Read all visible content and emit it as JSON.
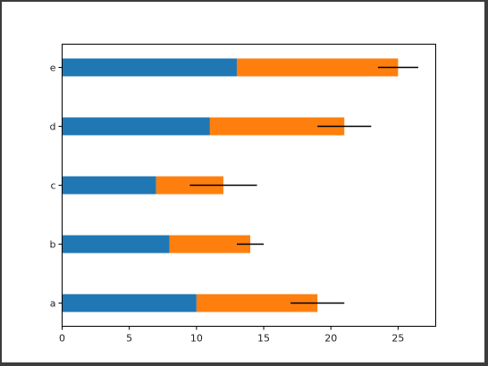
{
  "chart_data": {
    "type": "bar",
    "orientation": "horizontal",
    "stacked": true,
    "categories": [
      "a",
      "b",
      "c",
      "d",
      "e"
    ],
    "series": [
      {
        "values": [
          10,
          8,
          7,
          11,
          13
        ],
        "color": "#1f77b4"
      },
      {
        "values": [
          9,
          6,
          5,
          10,
          12
        ],
        "color": "#ff7f0e"
      }
    ],
    "error_bars": {
      "series_index": 1,
      "errors": [
        2,
        1,
        2.5,
        2,
        1.5
      ],
      "color": "#000000"
    },
    "xlim": [
      0,
      27.8
    ],
    "x_ticks": [
      0,
      5,
      10,
      15,
      20,
      25
    ],
    "title": "",
    "xlabel": "",
    "ylabel": "",
    "grid": false,
    "legend": "none"
  }
}
